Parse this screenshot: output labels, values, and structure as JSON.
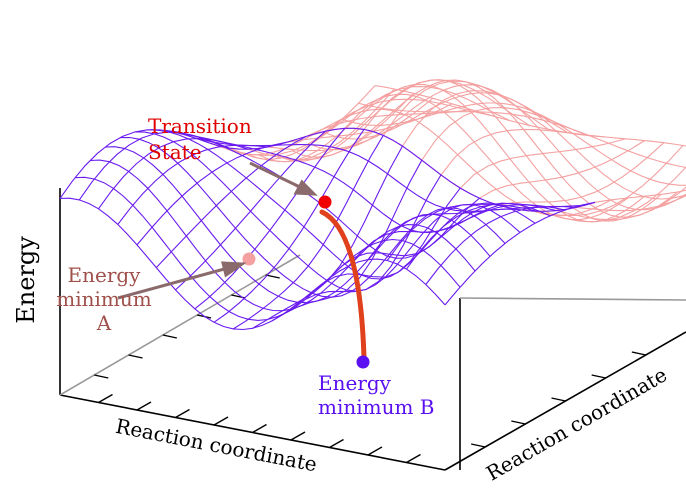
{
  "labels": {
    "transition_state": [
      "Transition",
      "State"
    ],
    "minimum_a": [
      "Energy",
      "minimum",
      "A"
    ],
    "minimum_b": [
      "Energy",
      "minimum B"
    ],
    "y_axis": "Energy",
    "x_axis_front": "Reaction coordinate",
    "x_axis_right": "Reaction coordinate"
  }
}
